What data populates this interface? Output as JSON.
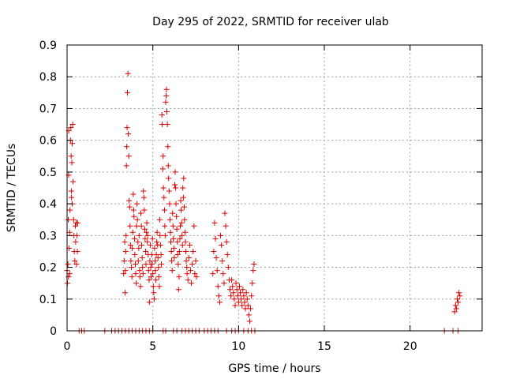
{
  "colors": {
    "series": "#e00000",
    "grid": "#a0a0a0",
    "axis": "#000000"
  },
  "chart_data": {
    "type": "scatter",
    "title": "Day 295 of 2022, SRMTID for receiver ulab",
    "xlabel": "GPS time / hours",
    "ylabel": "SRMTID / TECUs",
    "xlim": [
      0,
      24.2
    ],
    "ylim": [
      0,
      0.9
    ],
    "x_ticks": [
      {
        "value": 0,
        "label": "0"
      },
      {
        "value": 5,
        "label": "5"
      },
      {
        "value": 10,
        "label": "10"
      },
      {
        "value": 15,
        "label": "15"
      },
      {
        "value": 20,
        "label": "20"
      }
    ],
    "y_ticks": [
      {
        "value": 0,
        "label": "0"
      },
      {
        "value": 0.1,
        "label": "0.1"
      },
      {
        "value": 0.2,
        "label": "0.2"
      },
      {
        "value": 0.3,
        "label": "0.3"
      },
      {
        "value": 0.4,
        "label": "0.4"
      },
      {
        "value": 0.5,
        "label": "0.5"
      },
      {
        "value": 0.6,
        "label": "0.6"
      },
      {
        "value": 0.7,
        "label": "0.7"
      },
      {
        "value": 0.8,
        "label": "0.8"
      },
      {
        "value": 0.9,
        "label": "0.9"
      }
    ],
    "grid": true,
    "marker": "+",
    "series": [
      {
        "name": "SRMTID",
        "points": [
          [
            0.0,
            0.19
          ],
          [
            0.02,
            0.15
          ],
          [
            0.05,
            0.21
          ],
          [
            0.07,
            0.35
          ],
          [
            0.09,
            0.49
          ],
          [
            0.1,
            0.63
          ],
          [
            0.12,
            0.26
          ],
          [
            0.15,
            0.18
          ],
          [
            0.17,
            0.38
          ],
          [
            0.2,
            0.6
          ],
          [
            0.22,
            0.64
          ],
          [
            0.24,
            0.55
          ],
          [
            0.26,
            0.42
          ],
          [
            0.28,
            0.53
          ],
          [
            0.3,
            0.59
          ],
          [
            0.33,
            0.65
          ],
          [
            0.35,
            0.47
          ],
          [
            0.38,
            0.35
          ],
          [
            0.4,
            0.3
          ],
          [
            0.42,
            0.25
          ],
          [
            0.45,
            0.22
          ],
          [
            0.48,
            0.33
          ],
          [
            0.5,
            0.28
          ],
          [
            0.53,
            0.34
          ],
          [
            0.55,
            0.21
          ],
          [
            0.58,
            0.3
          ],
          [
            0.6,
            0.25
          ],
          [
            0.62,
            0.34
          ],
          [
            0.3,
            0.4
          ],
          [
            0.25,
            0.44
          ],
          [
            0.15,
            0.31
          ],
          [
            0.08,
            0.17
          ],
          [
            3.3,
            0.18
          ],
          [
            3.33,
            0.22
          ],
          [
            3.36,
            0.28
          ],
          [
            3.38,
            0.12
          ],
          [
            3.4,
            0.19
          ],
          [
            3.42,
            0.25
          ],
          [
            3.44,
            0.3
          ],
          [
            3.46,
            0.52
          ],
          [
            3.48,
            0.58
          ],
          [
            3.5,
            0.64
          ],
          [
            3.52,
            0.75
          ],
          [
            3.55,
            0.81
          ],
          [
            3.57,
            0.62
          ],
          [
            3.6,
            0.55
          ],
          [
            3.62,
            0.41
          ],
          [
            3.65,
            0.39
          ],
          [
            3.67,
            0.33
          ],
          [
            3.7,
            0.27
          ],
          [
            3.72,
            0.22
          ],
          [
            3.75,
            0.2
          ],
          [
            3.78,
            0.17
          ],
          [
            3.8,
            0.26
          ],
          [
            3.83,
            0.31
          ],
          [
            3.86,
            0.43
          ],
          [
            3.88,
            0.38
          ],
          [
            3.9,
            0.36
          ],
          [
            3.93,
            0.29
          ],
          [
            3.95,
            0.24
          ],
          [
            3.98,
            0.21
          ],
          [
            4.0,
            0.18
          ],
          [
            4.03,
            0.15
          ],
          [
            4.05,
            0.33
          ],
          [
            4.08,
            0.4
          ],
          [
            4.1,
            0.35
          ],
          [
            4.13,
            0.28
          ],
          [
            4.15,
            0.22
          ],
          [
            4.18,
            0.26
          ],
          [
            4.2,
            0.3
          ],
          [
            4.23,
            0.19
          ],
          [
            4.25,
            0.17
          ],
          [
            4.28,
            0.14
          ],
          [
            4.3,
            0.37
          ],
          [
            4.33,
            0.33
          ],
          [
            4.35,
            0.27
          ],
          [
            4.38,
            0.23
          ],
          [
            4.4,
            0.2
          ],
          [
            4.43,
            0.18
          ],
          [
            4.45,
            0.44
          ],
          [
            4.48,
            0.42
          ],
          [
            4.5,
            0.38
          ],
          [
            4.53,
            0.32
          ],
          [
            4.55,
            0.29
          ],
          [
            4.58,
            0.25
          ],
          [
            4.6,
            0.21
          ],
          [
            4.63,
            0.31
          ],
          [
            4.65,
            0.34
          ],
          [
            4.68,
            0.28
          ],
          [
            4.7,
            0.3
          ],
          [
            4.73,
            0.24
          ],
          [
            4.75,
            0.19
          ],
          [
            4.78,
            0.16
          ],
          [
            4.8,
            0.09
          ],
          [
            4.83,
            0.22
          ],
          [
            4.85,
            0.27
          ],
          [
            4.88,
            0.2
          ],
          [
            4.9,
            0.17
          ],
          [
            4.93,
            0.24
          ],
          [
            4.95,
            0.21
          ],
          [
            4.98,
            0.29
          ],
          [
            5.0,
            0.18
          ],
          [
            5.03,
            0.14
          ],
          [
            5.05,
            0.12
          ],
          [
            5.08,
            0.1
          ],
          [
            5.1,
            0.26
          ],
          [
            5.13,
            0.22
          ],
          [
            5.15,
            0.19
          ],
          [
            5.18,
            0.16
          ],
          [
            5.2,
            0.24
          ],
          [
            5.23,
            0.28
          ],
          [
            5.25,
            0.31
          ],
          [
            5.28,
            0.27
          ],
          [
            5.3,
            0.23
          ],
          [
            5.33,
            0.2
          ],
          [
            5.35,
            0.17
          ],
          [
            5.38,
            0.14
          ],
          [
            5.4,
            0.35
          ],
          [
            5.42,
            0.3
          ],
          [
            5.45,
            0.27
          ],
          [
            5.48,
            0.24
          ],
          [
            5.5,
            0.21
          ],
          [
            5.53,
            0.68
          ],
          [
            5.55,
            0.65
          ],
          [
            5.58,
            0.51
          ],
          [
            5.6,
            0.55
          ],
          [
            5.62,
            0.45
          ],
          [
            5.65,
            0.42
          ],
          [
            5.68,
            0.38
          ],
          [
            5.7,
            0.33
          ],
          [
            5.72,
            0.3
          ],
          [
            5.75,
            0.72
          ],
          [
            5.78,
            0.74
          ],
          [
            5.8,
            0.76
          ],
          [
            5.82,
            0.69
          ],
          [
            5.85,
            0.65
          ],
          [
            5.88,
            0.58
          ],
          [
            5.9,
            0.52
          ],
          [
            5.92,
            0.48
          ],
          [
            5.95,
            0.44
          ],
          [
            5.98,
            0.4
          ],
          [
            6.0,
            0.35
          ],
          [
            6.03,
            0.31
          ],
          [
            6.05,
            0.28
          ],
          [
            6.08,
            0.25
          ],
          [
            6.1,
            0.22
          ],
          [
            6.13,
            0.19
          ],
          [
            6.15,
            0.37
          ],
          [
            6.18,
            0.33
          ],
          [
            6.2,
            0.29
          ],
          [
            6.23,
            0.26
          ],
          [
            6.25,
            0.23
          ],
          [
            6.28,
            0.46
          ],
          [
            6.3,
            0.5
          ],
          [
            6.33,
            0.45
          ],
          [
            6.35,
            0.4
          ],
          [
            6.38,
            0.36
          ],
          [
            6.4,
            0.32
          ],
          [
            6.43,
            0.28
          ],
          [
            6.45,
            0.24
          ],
          [
            6.48,
            0.21
          ],
          [
            6.5,
            0.13
          ],
          [
            6.53,
            0.17
          ],
          [
            6.55,
            0.25
          ],
          [
            6.58,
            0.29
          ],
          [
            6.6,
            0.33
          ],
          [
            6.63,
            0.41
          ],
          [
            6.65,
            0.38
          ],
          [
            6.68,
            0.34
          ],
          [
            6.7,
            0.3
          ],
          [
            6.73,
            0.27
          ],
          [
            6.75,
            0.45
          ],
          [
            6.78,
            0.42
          ],
          [
            6.8,
            0.48
          ],
          [
            6.83,
            0.39
          ],
          [
            6.85,
            0.35
          ],
          [
            6.88,
            0.31
          ],
          [
            6.9,
            0.28
          ],
          [
            6.93,
            0.25
          ],
          [
            6.95,
            0.22
          ],
          [
            6.98,
            0.2
          ],
          [
            7.0,
            0.18
          ],
          [
            7.05,
            0.16
          ],
          [
            7.1,
            0.23
          ],
          [
            7.15,
            0.27
          ],
          [
            7.2,
            0.19
          ],
          [
            7.25,
            0.15
          ],
          [
            7.3,
            0.21
          ],
          [
            7.35,
            0.25
          ],
          [
            7.4,
            0.33
          ],
          [
            7.45,
            0.18
          ],
          [
            7.5,
            0.22
          ],
          [
            7.55,
            0.17
          ],
          [
            8.5,
            0.18
          ],
          [
            8.55,
            0.25
          ],
          [
            8.6,
            0.34
          ],
          [
            8.65,
            0.29
          ],
          [
            8.7,
            0.23
          ],
          [
            8.75,
            0.19
          ],
          [
            8.8,
            0.14
          ],
          [
            8.85,
            0.11
          ],
          [
            8.9,
            0.09
          ],
          [
            8.95,
            0.3
          ],
          [
            9.0,
            0.27
          ],
          [
            9.05,
            0.22
          ],
          [
            9.1,
            0.18
          ],
          [
            9.15,
            0.15
          ],
          [
            9.2,
            0.37
          ],
          [
            9.25,
            0.33
          ],
          [
            9.3,
            0.28
          ],
          [
            9.35,
            0.24
          ],
          [
            9.4,
            0.2
          ],
          [
            9.45,
            0.16
          ],
          [
            9.5,
            0.13
          ],
          [
            9.55,
            0.11
          ],
          [
            9.6,
            0.16
          ],
          [
            9.65,
            0.14
          ],
          [
            9.7,
            0.12
          ],
          [
            9.75,
            0.1
          ],
          [
            9.8,
            0.08
          ],
          [
            9.85,
            0.15
          ],
          [
            9.9,
            0.13
          ],
          [
            9.95,
            0.11
          ],
          [
            10.0,
            0.09
          ],
          [
            10.05,
            0.14
          ],
          [
            10.1,
            0.12
          ],
          [
            10.15,
            0.1
          ],
          [
            10.2,
            0.08
          ],
          [
            10.25,
            0.13
          ],
          [
            10.3,
            0.11
          ],
          [
            10.35,
            0.09
          ],
          [
            10.4,
            0.07
          ],
          [
            10.45,
            0.12
          ],
          [
            10.5,
            0.1
          ],
          [
            10.55,
            0.08
          ],
          [
            10.6,
            0.05
          ],
          [
            10.65,
            0.03
          ],
          [
            10.7,
            0.07
          ],
          [
            10.75,
            0.11
          ],
          [
            10.8,
            0.15
          ],
          [
            10.85,
            0.19
          ],
          [
            10.9,
            0.21
          ],
          [
            22.6,
            0.06
          ],
          [
            22.65,
            0.08
          ],
          [
            22.7,
            0.07
          ],
          [
            22.75,
            0.1
          ],
          [
            22.8,
            0.09
          ],
          [
            22.85,
            0.12
          ],
          [
            22.9,
            0.11
          ],
          [
            0.7,
            0.0
          ],
          [
            0.85,
            0.0
          ],
          [
            1.0,
            0.0
          ],
          [
            2.2,
            0.0
          ],
          [
            2.6,
            0.0
          ],
          [
            2.8,
            0.0
          ],
          [
            3.0,
            0.0
          ],
          [
            3.2,
            0.0
          ],
          [
            3.4,
            0.0
          ],
          [
            3.6,
            0.0
          ],
          [
            3.8,
            0.0
          ],
          [
            4.0,
            0.0
          ],
          [
            4.2,
            0.0
          ],
          [
            4.4,
            0.0
          ],
          [
            4.6,
            0.0
          ],
          [
            4.8,
            0.0
          ],
          [
            5.0,
            0.0
          ],
          [
            5.6,
            0.0
          ],
          [
            5.75,
            0.0
          ],
          [
            6.2,
            0.0
          ],
          [
            6.4,
            0.0
          ],
          [
            6.7,
            0.0
          ],
          [
            6.9,
            0.0
          ],
          [
            7.1,
            0.0
          ],
          [
            7.3,
            0.0
          ],
          [
            7.5,
            0.0
          ],
          [
            7.7,
            0.0
          ],
          [
            8.0,
            0.0
          ],
          [
            8.2,
            0.0
          ],
          [
            8.4,
            0.0
          ],
          [
            8.6,
            0.0
          ],
          [
            8.8,
            0.0
          ],
          [
            9.3,
            0.0
          ],
          [
            9.6,
            0.0
          ],
          [
            9.8,
            0.0
          ],
          [
            10.0,
            0.0
          ],
          [
            10.3,
            0.0
          ],
          [
            10.55,
            0.0
          ],
          [
            10.75,
            0.0
          ],
          [
            10.95,
            0.0
          ],
          [
            22.0,
            0.0
          ],
          [
            22.5,
            0.0
          ],
          [
            22.8,
            0.0
          ]
        ]
      }
    ]
  }
}
